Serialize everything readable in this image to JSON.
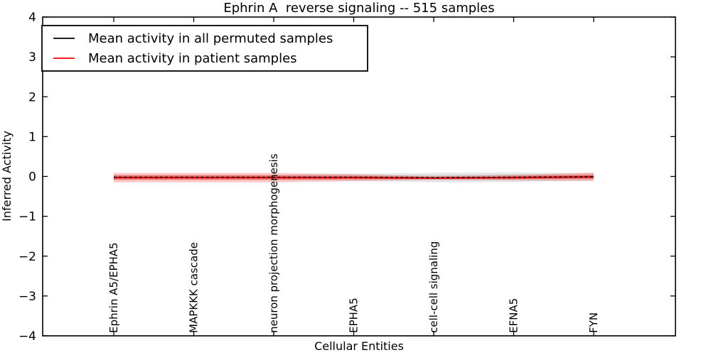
{
  "title": "Ephrin A  reverse signaling -- 515 samples",
  "xlabel": "Cellular Entities",
  "ylabel": "Inferred Activity",
  "yticklabels": [
    "4",
    "3",
    "2",
    "1",
    "0",
    "−1",
    "−2",
    "−3",
    "−4"
  ],
  "legend": {
    "entries": [
      {
        "label": "Mean activity in all permuted samples",
        "color": "#000000"
      },
      {
        "label": "Mean activity in patient samples",
        "color": "#ff0000"
      }
    ]
  },
  "colors": {
    "frame": "#000000",
    "patient_line": "#ff0000",
    "permuted_line": "#000000",
    "background": "#ffffff"
  },
  "chart_data": {
    "type": "line",
    "title": "Ephrin A  reverse signaling -- 515 samples",
    "xlabel": "Cellular Entities",
    "ylabel": "Inferred Activity",
    "ylim": [
      -4,
      4
    ],
    "yticks": [
      4,
      3,
      2,
      1,
      0,
      -1,
      -2,
      -3,
      -4
    ],
    "grid": false,
    "legend_position": "upper left",
    "categories": [
      "Ephrin A5/EPHA5",
      "MAPKKK cascade",
      "neuron projection morphogenesis",
      "EPHA5",
      "cell-cell signaling",
      "EFNA5",
      "FYN"
    ],
    "series": [
      {
        "name": "Mean activity in all permuted samples",
        "color": "#000000",
        "linestyle": "dashed",
        "values": [
          -0.02,
          -0.02,
          -0.02,
          -0.02,
          -0.03,
          -0.02,
          -0.01
        ],
        "std": [
          0.07,
          0.07,
          0.07,
          0.09,
          0.12,
          0.12,
          0.09
        ]
      },
      {
        "name": "Mean activity in patient samples",
        "color": "#ff0000",
        "linestyle": "solid",
        "values": [
          -0.03,
          -0.03,
          -0.03,
          -0.03,
          -0.04,
          -0.03,
          -0.01
        ],
        "std": [
          0.12,
          0.12,
          0.12,
          0.09,
          0.04,
          0.07,
          0.11
        ]
      }
    ]
  }
}
